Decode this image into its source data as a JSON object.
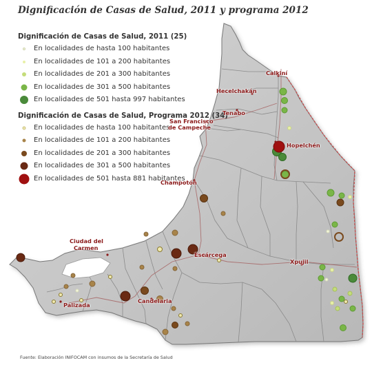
{
  "title": "Dignificación de Casas de Salud, 2011 y programa 2012",
  "legend": {
    "group_2011": {
      "heading": "Dignificación de Casas de Salud, 2011 (25)",
      "items": [
        {
          "label": "En localidades de hasta 100 habitantes",
          "color": "#f3f6dc"
        },
        {
          "label": "En localidades de 101 a 200 habitantes",
          "color": "#e8f0a8"
        },
        {
          "label": "En localidades de 201 a 300 habitantes",
          "color": "#c5dd7a"
        },
        {
          "label": "En localidades de 301 a 500 habitantes",
          "color": "#7ab648"
        },
        {
          "label": "En localidades de 501 hasta 997 habitantes",
          "color": "#4a8a3a"
        }
      ]
    },
    "group_2012": {
      "heading": "Dignificación de Casas de Salud, Programa 2012 (34)",
      "items": [
        {
          "label": "En localidades de hasta 100 habitantes",
          "color": "#f0eab0"
        },
        {
          "label": "En localidades de 101 a 200 habitantes",
          "color": "#a8844a"
        },
        {
          "label": "En localidades de 201 a 300 habitantes",
          "color": "#7a4a1e"
        },
        {
          "label": "En localidades de 301 a 500 habitantes",
          "color": "#6a2a14"
        },
        {
          "label": "En localidades de 501 hasta 881 habitantes",
          "color": "#a01010"
        }
      ]
    }
  },
  "places": [
    "Calkiní",
    "Hecelchakán",
    "Tenabo",
    "San Francisco",
    "de Campeche",
    "Hopelchén",
    "Champotón",
    "Ciudad del",
    "Carmen",
    "Escárcega",
    "Xpujil",
    "Palizada",
    "Candelaria"
  ],
  "footer": "Fuente: Elaboración INIFOCAM con insumos de la Secretaría de Salud",
  "colors": {
    "land": "#c9c9c9",
    "land_edge": "#8a8a8a",
    "border": "#c44a4a",
    "place_label": "#8b1a1a"
  }
}
